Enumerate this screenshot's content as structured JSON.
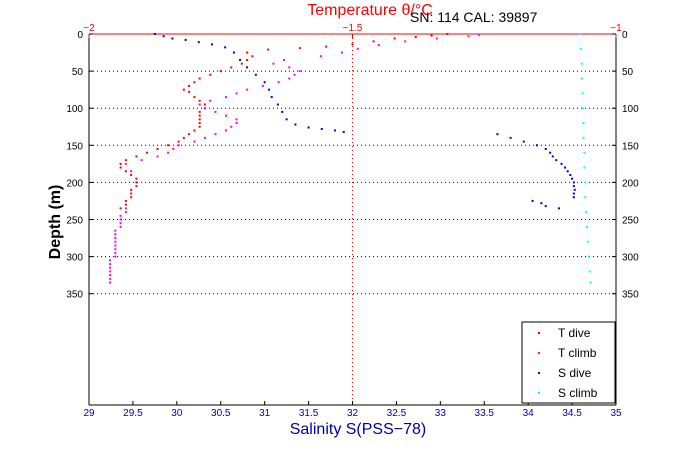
{
  "header": {
    "title": "Temperature θ/°C",
    "sn_cal": "SN: 114  CAL: 39897"
  },
  "colors": {
    "t_dive": "#ff0000",
    "t_climb": "#ff00ff",
    "s_dive": "#0000cc",
    "s_climb": "#00ffff",
    "temp_axis": "#ff0000",
    "sal_axis": "#0000aa",
    "grid": "#000000",
    "frame": "#000000"
  },
  "chart_data": {
    "type": "scatter",
    "title": "Temperature θ/°C",
    "xlabel": "Salinity S(PSS−78)",
    "ylabel": "Depth (m)",
    "grid": true,
    "legend_position": "bottom-right",
    "salinity_axis": {
      "range": [
        29,
        35
      ],
      "ticks": [
        29,
        29.5,
        30,
        30.5,
        31,
        31.5,
        32,
        32.5,
        33,
        33.5,
        34,
        34.5,
        35
      ],
      "tick_labels": [
        "29",
        "29.5",
        "30",
        "30.5",
        "31",
        "31.5",
        "32",
        "32.5",
        "33",
        "33.5",
        "34",
        "34.5",
        "35"
      ]
    },
    "temperature_axis": {
      "range": [
        -2,
        -1
      ],
      "ticks": [
        -2,
        -1.5,
        -1
      ],
      "tick_labels": [
        "−2",
        "−1.5",
        "−1"
      ]
    },
    "depth_axis": {
      "range": [
        0,
        500
      ],
      "reversed": true,
      "ticks": [
        0,
        50,
        100,
        150,
        200,
        250,
        300,
        350
      ],
      "tick_labels": [
        "0",
        "50",
        "100",
        "150",
        "200",
        "250",
        "300",
        "350"
      ]
    },
    "series": [
      {
        "name": "T dive",
        "x_axis": "temperature",
        "color": "#ff0000",
        "points": [
          [
            -1.32,
            0
          ],
          [
            -1.35,
            2
          ],
          [
            -1.38,
            4
          ],
          [
            -1.42,
            6
          ],
          [
            -1.46,
            10
          ],
          [
            -1.5,
            14
          ],
          [
            -1.55,
            17
          ],
          [
            -1.6,
            19
          ],
          [
            -1.66,
            21
          ],
          [
            -1.7,
            25
          ],
          [
            -1.69,
            30
          ],
          [
            -1.7,
            35
          ],
          [
            -1.71,
            40
          ],
          [
            -1.73,
            45
          ],
          [
            -1.75,
            50
          ],
          [
            -1.77,
            55
          ],
          [
            -1.79,
            60
          ],
          [
            -1.8,
            65
          ],
          [
            -1.81,
            70
          ],
          [
            -1.82,
            75
          ],
          [
            -1.81,
            78
          ],
          [
            -1.8,
            85
          ],
          [
            -1.79,
            90
          ],
          [
            -1.78,
            95
          ],
          [
            -1.78,
            100
          ],
          [
            -1.79,
            105
          ],
          [
            -1.79,
            110
          ],
          [
            -1.79,
            115
          ],
          [
            -1.79,
            120
          ],
          [
            -1.79,
            125
          ],
          [
            -1.8,
            130
          ],
          [
            -1.81,
            135
          ],
          [
            -1.82,
            140
          ],
          [
            -1.83,
            145
          ],
          [
            -1.85,
            150
          ],
          [
            -1.87,
            155
          ],
          [
            -1.89,
            160
          ],
          [
            -1.91,
            165
          ],
          [
            -1.93,
            170
          ],
          [
            -1.94,
            175
          ],
          [
            -1.94,
            180
          ],
          [
            -1.93,
            185
          ],
          [
            -1.92,
            190
          ],
          [
            -1.91,
            195
          ],
          [
            -1.91,
            200
          ],
          [
            -1.91,
            205
          ],
          [
            -1.92,
            210
          ],
          [
            -1.92,
            215
          ],
          [
            -1.92,
            220
          ],
          [
            -1.93,
            225
          ],
          [
            -1.93,
            230
          ],
          [
            -1.94,
            235
          ]
        ]
      },
      {
        "name": "T climb",
        "x_axis": "temperature",
        "color": "#ff00ff",
        "points": [
          [
            -1.93,
            235
          ],
          [
            -1.93,
            240
          ],
          [
            -1.94,
            245
          ],
          [
            -1.94,
            250
          ],
          [
            -1.94,
            255
          ],
          [
            -1.94,
            260
          ],
          [
            -1.95,
            265
          ],
          [
            -1.95,
            270
          ],
          [
            -1.95,
            275
          ],
          [
            -1.95,
            280
          ],
          [
            -1.95,
            285
          ],
          [
            -1.95,
            290
          ],
          [
            -1.95,
            295
          ],
          [
            -1.95,
            300
          ],
          [
            -1.96,
            305
          ],
          [
            -1.96,
            310
          ],
          [
            -1.96,
            315
          ],
          [
            -1.96,
            320
          ],
          [
            -1.96,
            325
          ],
          [
            -1.96,
            330
          ],
          [
            -1.96,
            335
          ],
          [
            -1.92,
            185
          ],
          [
            -1.93,
            175
          ],
          [
            -1.9,
            170
          ],
          [
            -1.87,
            165
          ],
          [
            -1.85,
            160
          ],
          [
            -1.84,
            155
          ],
          [
            -1.83,
            150
          ],
          [
            -1.8,
            145
          ],
          [
            -1.78,
            140
          ],
          [
            -1.76,
            135
          ],
          [
            -1.74,
            130
          ],
          [
            -1.73,
            125
          ],
          [
            -1.72,
            120
          ],
          [
            -1.72,
            115
          ],
          [
            -1.74,
            110
          ],
          [
            -1.76,
            105
          ],
          [
            -1.78,
            100
          ],
          [
            -1.79,
            95
          ],
          [
            -1.77,
            90
          ],
          [
            -1.74,
            85
          ],
          [
            -1.72,
            80
          ],
          [
            -1.7,
            75
          ],
          [
            -1.67,
            70
          ],
          [
            -1.64,
            65
          ],
          [
            -1.62,
            60
          ],
          [
            -1.61,
            55
          ],
          [
            -1.6,
            50
          ],
          [
            -1.62,
            45
          ],
          [
            -1.65,
            40
          ],
          [
            -1.63,
            35
          ],
          [
            -1.56,
            30
          ],
          [
            -1.52,
            25
          ],
          [
            -1.49,
            20
          ],
          [
            -1.45,
            15
          ],
          [
            -1.4,
            10
          ],
          [
            -1.34,
            6
          ],
          [
            -1.28,
            3
          ],
          [
            -1.26,
            1
          ]
        ]
      },
      {
        "name": "S dive",
        "x_axis": "salinity",
        "color": "#0000cc",
        "points": [
          [
            29.75,
            0
          ],
          [
            29.85,
            3
          ],
          [
            29.95,
            6
          ],
          [
            30.1,
            8
          ],
          [
            30.25,
            11
          ],
          [
            30.4,
            14
          ],
          [
            30.55,
            18
          ],
          [
            30.65,
            25
          ],
          [
            30.72,
            35
          ],
          [
            30.8,
            45
          ],
          [
            30.9,
            55
          ],
          [
            31.0,
            65
          ],
          [
            31.05,
            75
          ],
          [
            31.08,
            85
          ],
          [
            31.15,
            95
          ],
          [
            31.2,
            105
          ],
          [
            31.25,
            115
          ],
          [
            31.35,
            122
          ],
          [
            31.5,
            126
          ],
          [
            31.65,
            128
          ],
          [
            31.8,
            130
          ],
          [
            31.9,
            132
          ],
          [
            33.65,
            135
          ],
          [
            33.8,
            140
          ],
          [
            33.95,
            145
          ],
          [
            34.1,
            150
          ],
          [
            34.2,
            155
          ],
          [
            34.25,
            160
          ],
          [
            34.28,
            165
          ],
          [
            34.32,
            170
          ],
          [
            34.38,
            175
          ],
          [
            34.42,
            180
          ],
          [
            34.45,
            185
          ],
          [
            34.48,
            190
          ],
          [
            34.5,
            195
          ],
          [
            34.52,
            200
          ],
          [
            34.52,
            205
          ],
          [
            34.53,
            210
          ],
          [
            34.52,
            215
          ],
          [
            34.52,
            220
          ],
          [
            34.05,
            225
          ],
          [
            34.15,
            228
          ],
          [
            34.2,
            232
          ],
          [
            34.35,
            235
          ]
        ]
      },
      {
        "name": "S climb",
        "x_axis": "salinity",
        "color": "#00ffff",
        "points": [
          [
            34.6,
            0
          ],
          [
            34.6,
            20
          ],
          [
            34.61,
            40
          ],
          [
            34.61,
            60
          ],
          [
            34.62,
            80
          ],
          [
            34.62,
            100
          ],
          [
            34.63,
            120
          ],
          [
            34.63,
            140
          ],
          [
            34.64,
            160
          ],
          [
            34.64,
            180
          ],
          [
            34.65,
            200
          ],
          [
            34.65,
            220
          ],
          [
            34.66,
            240
          ],
          [
            34.67,
            260
          ],
          [
            34.68,
            280
          ],
          [
            34.69,
            300
          ],
          [
            34.7,
            320
          ],
          [
            34.71,
            335
          ]
        ]
      }
    ]
  }
}
